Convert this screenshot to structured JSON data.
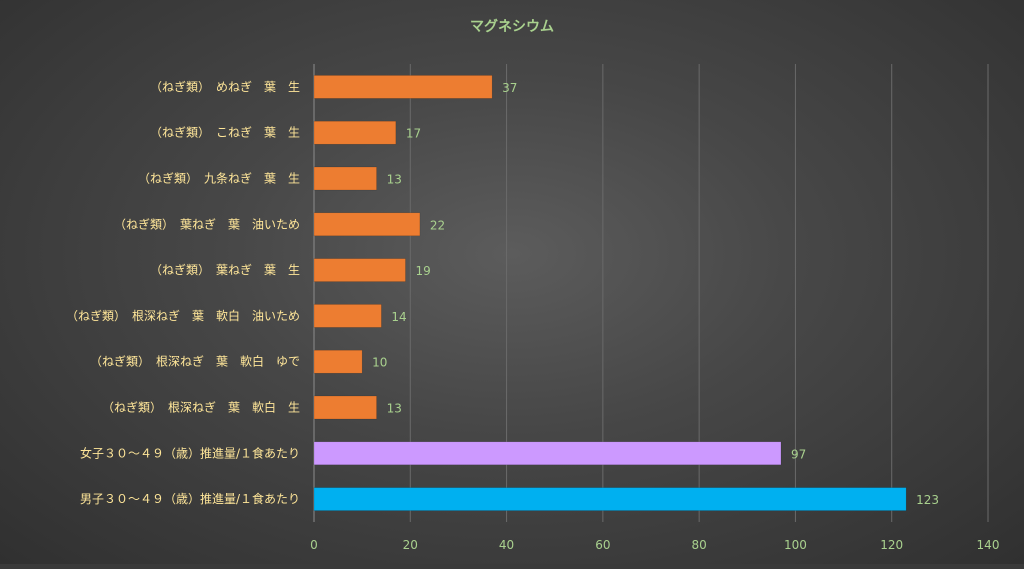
{
  "chart_data": {
    "type": "bar",
    "orientation": "horizontal",
    "title": "マグネシウム",
    "categories": [
      "（ねぎ類）　めねぎ　葉　生",
      "（ねぎ類）　こねぎ　葉　生",
      "（ねぎ類）　九条ねぎ　葉　生",
      "（ねぎ類）　葉ねぎ　葉　油いため",
      "（ねぎ類）　葉ねぎ　葉　生",
      "（ねぎ類）　根深ねぎ　葉　軟白　油いため",
      "（ねぎ類）　根深ねぎ　葉　軟白　ゆで",
      "（ねぎ類）　根深ねぎ　葉　軟白　生",
      "女子３０～４９（歳）推進量/１食あたり",
      "男子３０～４９（歳）推進量/１食あたり"
    ],
    "values": [
      37,
      17,
      13,
      22,
      19,
      14,
      10,
      13,
      97,
      123
    ],
    "bar_colors": [
      "#ed7d31",
      "#ed7d31",
      "#ed7d31",
      "#ed7d31",
      "#ed7d31",
      "#ed7d31",
      "#ed7d31",
      "#ed7d31",
      "#cc99ff",
      "#00b0f0"
    ],
    "x_ticks": [
      "0",
      "20",
      "40",
      "60",
      "80",
      "100",
      "120",
      "140"
    ],
    "xlim": [
      0,
      140
    ],
    "grid": true,
    "data_labels": true,
    "colors": {
      "title": "#a9d18e",
      "category_labels": "#ffe699",
      "data_labels": "#a9d18e",
      "tick_labels": "#a9d18e"
    }
  }
}
